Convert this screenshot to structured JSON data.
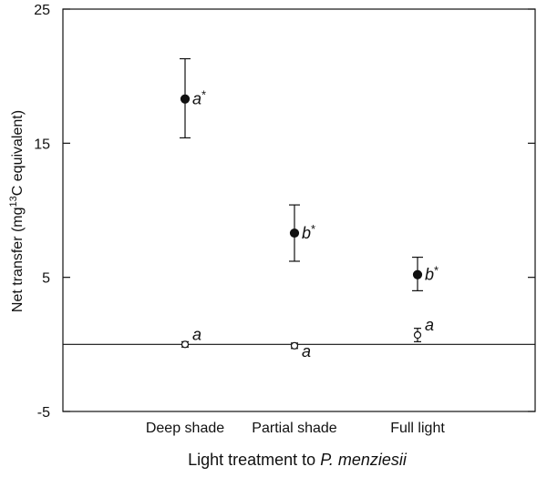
{
  "chart_data": {
    "type": "scatter",
    "xlabel_prefix": "Light treatment to ",
    "xlabel_species": "P. menziesii",
    "ylabel_before": "Net transfer (mg",
    "ylabel_sup": "13",
    "ylabel_after": "C equivalent)",
    "categories": [
      "Deep shade",
      "Partial shade",
      "Full light"
    ],
    "ylim": [
      -5,
      25
    ],
    "yticks": [
      "-5",
      "5",
      "15",
      "25"
    ],
    "ytick_values": [
      -5,
      5,
      15,
      25
    ],
    "zero_line": 0,
    "series": [
      {
        "marker": "filled-circle",
        "values": [
          18.3,
          8.3,
          5.2
        ],
        "error_upper": [
          21.3,
          10.4,
          6.5
        ],
        "error_lower": [
          15.4,
          6.2,
          4.0
        ],
        "labels": [
          "a",
          "b",
          "b"
        ],
        "label_marks": [
          "*",
          "*",
          "*"
        ]
      },
      {
        "marker": "open-circle",
        "values": [
          0.0,
          -0.1,
          0.7
        ],
        "error_upper": [
          0.2,
          0.1,
          1.2
        ],
        "error_lower": [
          -0.2,
          -0.3,
          0.2
        ],
        "labels": [
          "a",
          "a",
          "a"
        ],
        "label_marks": [
          "",
          "",
          ""
        ]
      }
    ]
  }
}
